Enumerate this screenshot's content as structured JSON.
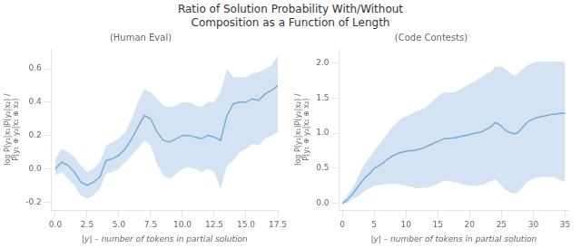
{
  "title": "Ratio of Solution Probability With/Without\nComposition as a Function of Length",
  "chart_data": [
    {
      "type": "line",
      "title": "(Human Eval)",
      "xlabel": "|y| – number of tokens in partial solution",
      "ylabel": "log P(y₁|x₁)P(y₂|x₂) /\nP(y₁ ⊕ y₂|x₁ ⊕ x₂)",
      "x": [
        0,
        0.5,
        1,
        1.5,
        2,
        2.5,
        3,
        3.5,
        4,
        4.5,
        5,
        5.5,
        6,
        6.5,
        7,
        7.5,
        8,
        8.5,
        9,
        9.5,
        10,
        10.5,
        11,
        11.5,
        12,
        12.5,
        13,
        13.5,
        14,
        14.5,
        15,
        15.5,
        16,
        16.5,
        17,
        17.5
      ],
      "series": [
        {
          "type": "band",
          "color": "#a8c8e8",
          "lower": [
            -0.04,
            -0.02,
            -0.06,
            -0.1,
            -0.16,
            -0.18,
            -0.16,
            -0.12,
            -0.03,
            -0.02,
            0.0,
            0.04,
            0.08,
            0.12,
            0.17,
            0.14,
            0.03,
            -0.04,
            -0.06,
            -0.03,
            0.0,
            0.01,
            0.0,
            -0.02,
            0.0,
            -0.02,
            -0.12,
            0.02,
            0.05,
            0.1,
            0.12,
            0.15,
            0.14,
            0.18,
            0.2,
            0.22
          ],
          "upper": [
            0.06,
            0.12,
            0.1,
            0.07,
            0.02,
            -0.02,
            0.0,
            0.04,
            0.14,
            0.16,
            0.18,
            0.22,
            0.3,
            0.4,
            0.48,
            0.46,
            0.42,
            0.38,
            0.37,
            0.38,
            0.4,
            0.4,
            0.38,
            0.37,
            0.4,
            0.4,
            0.46,
            0.6,
            0.55,
            0.55,
            0.55,
            0.57,
            0.58,
            0.6,
            0.62,
            0.68
          ]
        },
        {
          "type": "line",
          "color": "#4a90c4",
          "values": [
            0.0,
            0.04,
            0.02,
            -0.02,
            -0.08,
            -0.1,
            -0.08,
            -0.05,
            0.05,
            0.06,
            0.08,
            0.12,
            0.18,
            0.25,
            0.32,
            0.3,
            0.22,
            0.17,
            0.16,
            0.18,
            0.2,
            0.2,
            0.19,
            0.18,
            0.2,
            0.19,
            0.17,
            0.32,
            0.39,
            0.4,
            0.4,
            0.42,
            0.41,
            0.45,
            0.47,
            0.5
          ]
        }
      ],
      "xlim": [
        -0.3,
        17.5
      ],
      "xticks": [
        {
          "value": 0.0,
          "label": "0.0"
        },
        2.5,
        {
          "value": 5.0,
          "label": "5.0"
        },
        7.5,
        {
          "value": 10.0,
          "label": "10.0"
        },
        12.5,
        {
          "value": 15.0,
          "label": "15.0"
        },
        17.5
      ],
      "ylim": [
        -0.25,
        0.72
      ],
      "yticks": [
        -0.2,
        {
          "value": 0.0,
          "label": "0.0"
        },
        0.2,
        0.4,
        0.6
      ],
      "grid": false,
      "legend": false
    },
    {
      "type": "line",
      "title": "(Code Contests)",
      "xlabel": "|y| – number of tokens in partial solution",
      "ylabel": "log P(y₁|x₁)P(y₂|x₂) /\nP(y₁ ⊕ y₂|x₁ ⊕ x₂)",
      "x": [
        0,
        0.5,
        1,
        1.5,
        2,
        2.5,
        3,
        3.5,
        4,
        4.5,
        5,
        5.5,
        6,
        6.5,
        7,
        7.5,
        8,
        8.5,
        9,
        9.5,
        10,
        10.5,
        11,
        11.5,
        12,
        12.5,
        13,
        13.5,
        14,
        14.5,
        15,
        15.5,
        16,
        16.5,
        17,
        17.5,
        18,
        18.5,
        19,
        19.5,
        20,
        20.5,
        21,
        21.5,
        22,
        22.5,
        23,
        23.5,
        24,
        24.5,
        25,
        25.5,
        26,
        26.5,
        27,
        27.5,
        28,
        28.5,
        29,
        29.5,
        30,
        30.5,
        31,
        31.5,
        32,
        32.5,
        33,
        33.5,
        34,
        34.5,
        35
      ],
      "series": [
        {
          "type": "band",
          "color": "#a8c8e8",
          "lower": [
            -0.02,
            0.0,
            0.02,
            0.05,
            0.08,
            0.1,
            0.14,
            0.18,
            0.2,
            0.22,
            0.25,
            0.25,
            0.26,
            0.27,
            0.28,
            0.28,
            0.28,
            0.28,
            0.27,
            0.26,
            0.25,
            0.24,
            0.23,
            0.22,
            0.21,
            0.22,
            0.22,
            0.22,
            0.24,
            0.26,
            0.28,
            0.3,
            0.32,
            0.32,
            0.32,
            0.3,
            0.3,
            0.28,
            0.27,
            0.26,
            0.25,
            0.25,
            0.25,
            0.26,
            0.26,
            0.28,
            0.3,
            0.32,
            0.34,
            0.3,
            0.25,
            0.2,
            0.18,
            0.15,
            0.14,
            0.15,
            0.2,
            0.25,
            0.3,
            0.33,
            0.35,
            0.37,
            0.37,
            0.38,
            0.38,
            0.38,
            0.38,
            0.36,
            0.34,
            0.32,
            0.3
          ],
          "upper": [
            0.04,
            0.08,
            0.14,
            0.2,
            0.28,
            0.38,
            0.48,
            0.56,
            0.62,
            0.68,
            0.76,
            0.8,
            0.86,
            0.92,
            0.98,
            1.04,
            1.1,
            1.14,
            1.18,
            1.22,
            1.24,
            1.26,
            1.28,
            1.3,
            1.32,
            1.34,
            1.36,
            1.4,
            1.44,
            1.48,
            1.52,
            1.56,
            1.58,
            1.58,
            1.58,
            1.58,
            1.6,
            1.62,
            1.65,
            1.68,
            1.7,
            1.72,
            1.75,
            1.78,
            1.8,
            1.84,
            1.86,
            1.88,
            1.95,
            1.95,
            1.95,
            1.92,
            1.88,
            1.85,
            1.82,
            1.85,
            1.88,
            1.92,
            1.96,
            1.98,
            2.0,
            2.02,
            2.02,
            2.02,
            2.02,
            2.02,
            2.02,
            2.02,
            2.02,
            2.02,
            2.0
          ]
        },
        {
          "type": "line",
          "color": "#4a90c4",
          "values": [
            0.0,
            0.03,
            0.07,
            0.12,
            0.18,
            0.24,
            0.3,
            0.36,
            0.4,
            0.44,
            0.5,
            0.52,
            0.55,
            0.58,
            0.62,
            0.65,
            0.68,
            0.7,
            0.72,
            0.73,
            0.74,
            0.75,
            0.75,
            0.76,
            0.77,
            0.78,
            0.8,
            0.82,
            0.84,
            0.86,
            0.88,
            0.9,
            0.92,
            0.92,
            0.93,
            0.93,
            0.94,
            0.95,
            0.96,
            0.97,
            0.98,
            0.99,
            1.0,
            1.01,
            1.02,
            1.05,
            1.07,
            1.1,
            1.15,
            1.13,
            1.1,
            1.05,
            1.02,
            1.0,
            0.99,
            1.0,
            1.05,
            1.1,
            1.15,
            1.18,
            1.2,
            1.22,
            1.23,
            1.24,
            1.25,
            1.26,
            1.27,
            1.27,
            1.28,
            1.28,
            1.28
          ]
        }
      ],
      "xlim": [
        -0.5,
        35.5
      ],
      "xticks": [
        0,
        5,
        10,
        15,
        20,
        25,
        30,
        35
      ],
      "ylim": [
        -0.1,
        2.2
      ],
      "yticks": [
        {
          "value": 0.0,
          "label": "0.0"
        },
        0.5,
        {
          "value": 1.0,
          "label": "1.0"
        },
        1.5,
        {
          "value": 2.0,
          "label": "2.0"
        }
      ],
      "grid": false,
      "legend": false
    }
  ]
}
